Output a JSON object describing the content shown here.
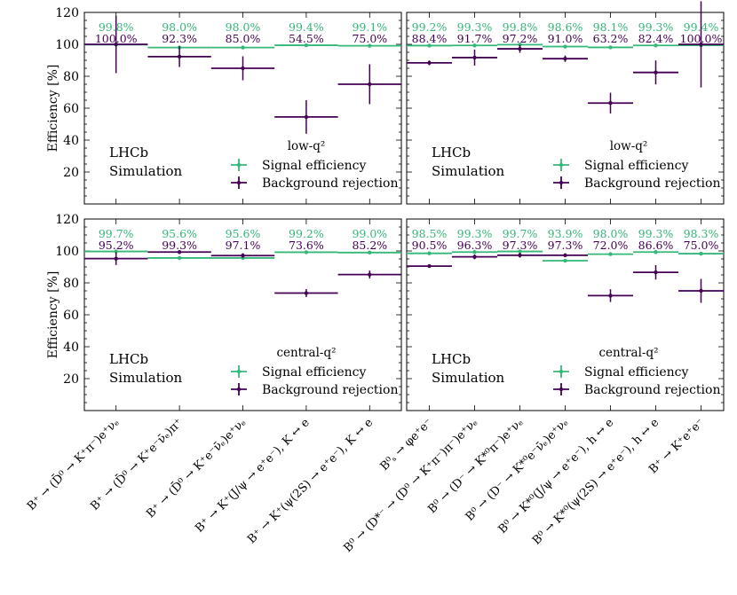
{
  "chart_data": {
    "type": "scatter",
    "figure_ylabel": "Efficiency [%]",
    "yticks": [
      "20",
      "40",
      "60",
      "80",
      "100",
      "120"
    ],
    "ylim": [
      0,
      120
    ],
    "colors": {
      "signal": "#35b779",
      "background": "#440154"
    },
    "top_label_colors": {
      "signal": "#35b779",
      "background": "#440154"
    },
    "panels": [
      {
        "id": "top-left",
        "lhcb_line1": "LHCb",
        "lhcb_line2": "Simulation",
        "region": "low-q²",
        "legend": {
          "signal": "Signal efficiency",
          "background": "Background rejection"
        },
        "show_ylabel": true,
        "categories": [
          "B⁺ → (D̄⁰ → K⁺π⁻)e⁺νₑ",
          "B⁺ → (D̄⁰ → K⁺e⁻ν̄ₑ)π⁺",
          "B⁺ → (D̄⁰ → K⁺e⁻ν̄ₑ)e⁺νₑ",
          "B⁺ → K⁺(J/ψ → e⁺e⁻), K ↔ e",
          "B⁺ → K⁺(ψ(2S) → e⁺e⁻), K ↔ e"
        ],
        "signal": [
          99.8,
          98.0,
          98.0,
          99.4,
          99.1
        ],
        "signal_err": [
          0.3,
          0.4,
          0.5,
          0.4,
          0.4
        ],
        "background": [
          100.0,
          92.3,
          85.0,
          54.5,
          75.0
        ],
        "background_err": [
          18.0,
          6.5,
          7.5,
          10.5,
          12.5
        ],
        "signal_labels": [
          "99.8%",
          "98.0%",
          "98.0%",
          "99.4%",
          "99.1%"
        ],
        "background_labels": [
          "100.0%",
          "92.3%",
          "85.0%",
          "54.5%",
          "75.0%"
        ]
      },
      {
        "id": "top-right",
        "lhcb_line1": "LHCb",
        "lhcb_line2": "Simulation",
        "region": "low-q²",
        "legend": {
          "signal": "Signal efficiency",
          "background": "Background rejection"
        },
        "show_ylabel": false,
        "categories": [
          "B⁰ₛ → φe⁺e⁻",
          "B⁰ → (D*⁻ → (D⁰ → K⁺π⁻)π⁻)e⁺νₑ",
          "B⁰ → (D⁻ → K*⁰π⁻)e⁺νₑ",
          "B⁰ → (D⁻ → K*⁰e⁻ν̄ₑ)e⁺νₑ",
          "B⁰ → K*⁰(J/ψ → e⁺e⁻), h ↔ e",
          "B⁰ → K*⁰(ψ(2S) → e⁺e⁻), h ↔ e",
          "B⁺ → K⁺e⁺e⁻"
        ],
        "signal": [
          99.2,
          99.3,
          99.8,
          98.6,
          98.1,
          99.3,
          99.4
        ],
        "signal_err": [
          0.3,
          0.3,
          0.2,
          0.4,
          0.4,
          0.3,
          0.3
        ],
        "background": [
          88.4,
          91.7,
          97.2,
          91.0,
          63.2,
          82.4,
          100.0
        ],
        "background_err": [
          1.5,
          5.0,
          2.5,
          2.0,
          6.5,
          7.5,
          27.0
        ],
        "signal_labels": [
          "99.2%",
          "99.3%",
          "99.8%",
          "98.6%",
          "98.1%",
          "99.3%",
          "99.4%"
        ],
        "background_labels": [
          "88.4%",
          "91.7%",
          "97.2%",
          "91.0%",
          "63.2%",
          "82.4%",
          "100.0%"
        ]
      },
      {
        "id": "bottom-left",
        "lhcb_line1": "LHCb",
        "lhcb_line2": "Simulation",
        "region": "central-q²",
        "legend": {
          "signal": "Signal efficiency",
          "background": "Background rejection"
        },
        "show_ylabel": true,
        "categories": [
          "B⁺ → (D̄⁰ → K⁺π⁻)e⁺νₑ",
          "B⁺ → (D̄⁰ → K⁺e⁻ν̄ₑ)π⁺",
          "B⁺ → (D̄⁰ → K⁺e⁻ν̄ₑ)e⁺νₑ",
          "B⁺ → K⁺(J/ψ → e⁺e⁻), K ↔ e",
          "B⁺ → K⁺(ψ(2S) → e⁺e⁻), K ↔ e"
        ],
        "signal": [
          99.7,
          95.6,
          95.6,
          99.2,
          99.0
        ],
        "signal_err": [
          0.3,
          0.5,
          0.6,
          0.3,
          0.3
        ],
        "background": [
          95.2,
          99.3,
          97.1,
          73.6,
          85.2
        ],
        "background_err": [
          4.0,
          0.7,
          1.5,
          2.5,
          2.5
        ],
        "signal_labels": [
          "99.7%",
          "95.6%",
          "95.6%",
          "99.2%",
          "99.0%"
        ],
        "background_labels": [
          "95.2%",
          "99.3%",
          "97.1%",
          "73.6%",
          "85.2%"
        ]
      },
      {
        "id": "bottom-right",
        "lhcb_line1": "LHCb",
        "lhcb_line2": "Simulation",
        "region": "central-q²",
        "legend": {
          "signal": "Signal efficiency",
          "background": "Background rejection"
        },
        "show_ylabel": false,
        "categories": [
          "B⁰ₛ → φe⁺e⁻",
          "B⁰ → (D*⁻ → (D⁰ → K⁺π⁻)π⁻)e⁺νₑ",
          "B⁰ → (D⁻ → K*⁰π⁻)e⁺νₑ",
          "B⁰ → (D⁻ → K*⁰e⁻ν̄ₑ)e⁺νₑ",
          "B⁰ → K*⁰(J/ψ → e⁺e⁻), h ↔ e",
          "B⁰ → K*⁰(ψ(2S) → e⁺e⁻), h ↔ e",
          "B⁺ → K⁺e⁺e⁻"
        ],
        "signal": [
          98.5,
          99.3,
          99.7,
          93.9,
          98.0,
          99.3,
          98.3
        ],
        "signal_err": [
          0.3,
          0.3,
          0.2,
          0.5,
          0.4,
          0.3,
          0.4
        ],
        "background": [
          90.5,
          96.3,
          97.3,
          97.3,
          72.0,
          86.6,
          75.0
        ],
        "background_err": [
          1.0,
          1.5,
          1.5,
          1.0,
          4.0,
          4.5,
          7.5
        ],
        "signal_labels": [
          "98.5%",
          "99.3%",
          "99.7%",
          "93.9%",
          "98.0%",
          "99.3%",
          "98.3%"
        ],
        "background_labels": [
          "90.5%",
          "96.3%",
          "97.3%",
          "97.3%",
          "72.0%",
          "86.6%",
          "75.0%"
        ]
      }
    ],
    "x_labels_left": [
      "B⁺ → (D̄⁰ → K⁺π⁻)e⁺νₑ",
      "B⁺ → (D̄⁰ → K⁺e⁻ν̄ₑ)π⁺",
      "B⁺ → (D̄⁰ → K⁺e⁻ν̄ₑ)e⁺νₑ",
      "B⁺ → K⁺(J/ψ → e⁺e⁻), K ↔ e",
      "B⁺ → K⁺(ψ(2S) → e⁺e⁻), K ↔ e"
    ],
    "x_labels_right": [
      "B⁰ₛ → φe⁺e⁻",
      "B⁰ → (D*⁻ → (D⁰ → K⁺π⁻)π⁻)e⁺νₑ",
      "B⁰ → (D⁻ → K*⁰π⁻)e⁺νₑ",
      "B⁰ → (D⁻ → K*⁰e⁻ν̄ₑ)e⁺νₑ",
      "B⁰ → K*⁰(J/ψ → e⁺e⁻), h ↔ e",
      "B⁰ → K*⁰(ψ(2S) → e⁺e⁻), h ↔ e",
      "B⁺ → K⁺e⁺e⁻"
    ]
  }
}
